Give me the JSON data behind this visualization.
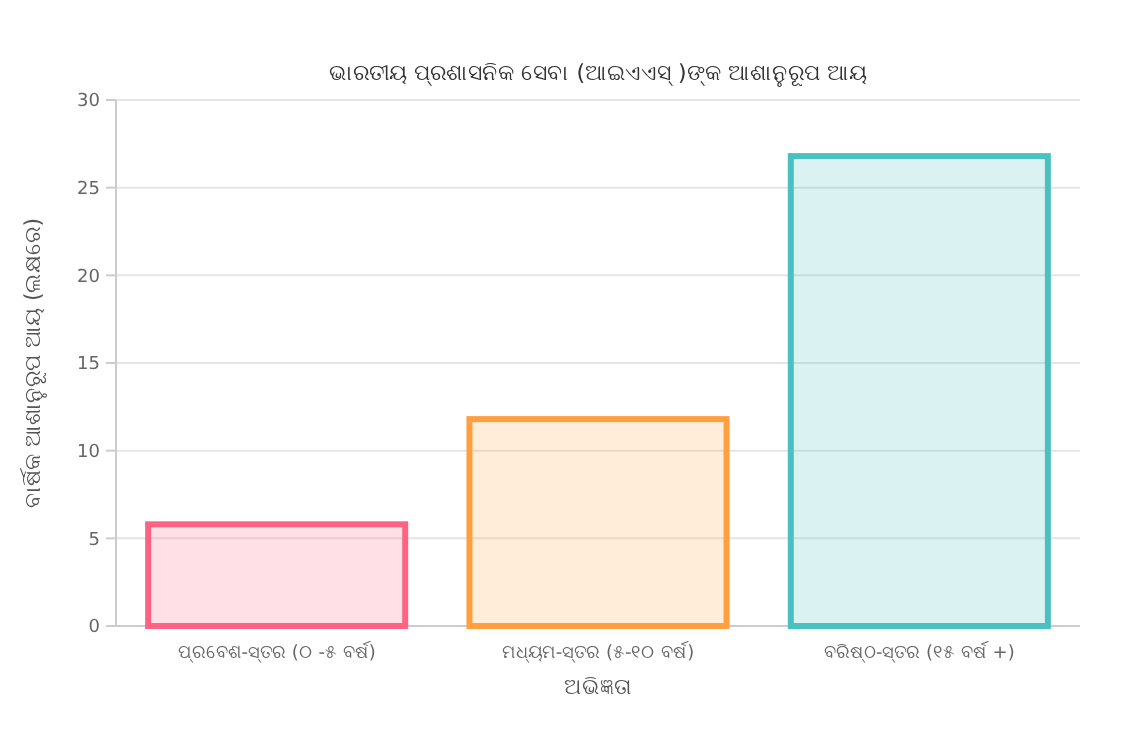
{
  "chart_data": {
    "type": "bar",
    "title": "ଭାରତୀୟ ପ୍ରଶାସନିକ ସେବା (ଆଇଏଏସ୍ )ଙ୍କ ଆଶାନୁରୂପ ଆୟ",
    "xlabel": "ଅଭିଜ୍ଞତା",
    "ylabel": "ବାର୍ଷିକ ଆଶାନୁରୂପ ଆୟ (ଲକ୍ଷରେ)",
    "categories": [
      "ପ୍ରବେଶ-ସ୍ତର (୦ -୫ ବର୍ଷ)",
      "ମଧ୍ୟମ-ସ୍ତର (୫-୧୦ ବର୍ଷ)",
      "ବରିଷ୍ଠ-ସ୍ତର (୧୫ ବର୍ଷ +)"
    ],
    "values": [
      5.8,
      11.8,
      26.8
    ],
    "colors": [
      "#ff6384",
      "#ff9f40",
      "#4bc0c0"
    ],
    "ylim": [
      0,
      30
    ],
    "yticks": [
      0,
      5,
      10,
      15,
      20,
      25,
      30
    ],
    "grid": "y"
  }
}
